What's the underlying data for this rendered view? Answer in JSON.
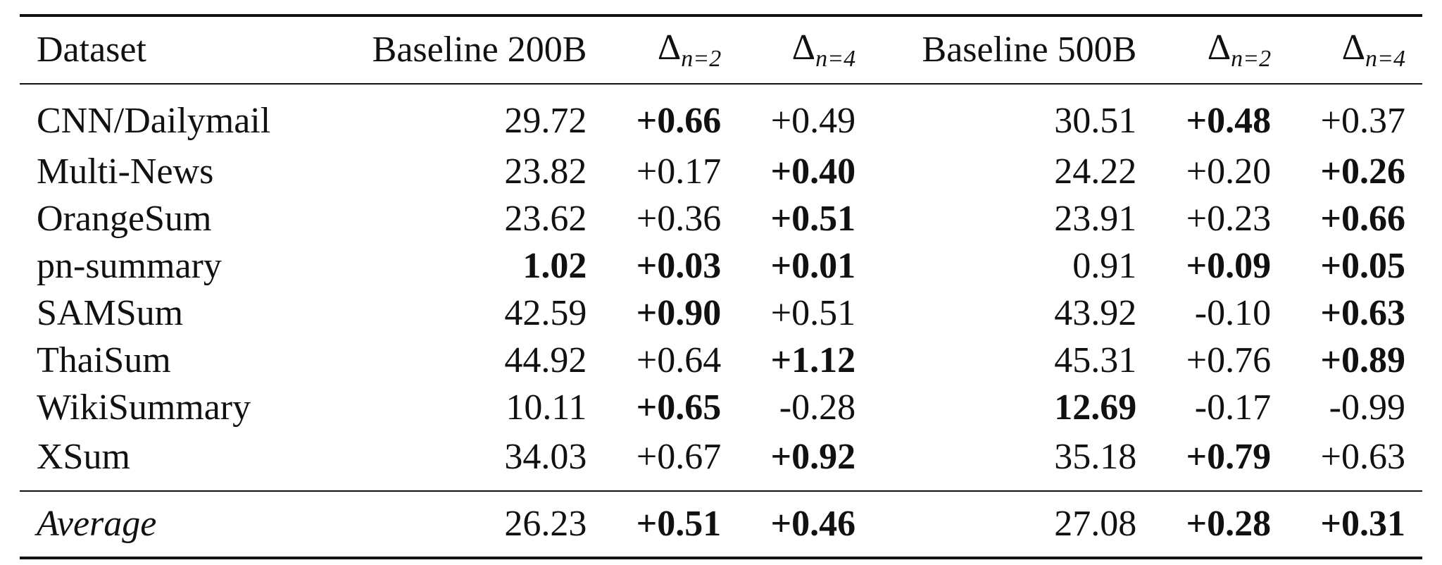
{
  "table": {
    "headers": {
      "dataset": "Dataset",
      "baseline_200b": "Baseline 200B",
      "delta_n2_a": "n=2",
      "delta_n4_a": "n=4",
      "baseline_500b": "Baseline 500B",
      "delta_n2_b": "n=2",
      "delta_n4_b": "n=4"
    },
    "delta_symbol": "Δ",
    "rows": [
      {
        "dataset": "CNN/Dailymail",
        "b200": "29.72",
        "d2a": "+0.66",
        "d4a": "+0.49",
        "b500": "30.51",
        "d2b": "+0.48",
        "d4b": "+0.37",
        "bold": {
          "b200": false,
          "d2a": true,
          "d4a": false,
          "b500": false,
          "d2b": true,
          "d4b": false
        }
      },
      {
        "dataset": "Multi-News",
        "b200": "23.82",
        "d2a": "+0.17",
        "d4a": "+0.40",
        "b500": "24.22",
        "d2b": "+0.20",
        "d4b": "+0.26",
        "bold": {
          "b200": false,
          "d2a": false,
          "d4a": true,
          "b500": false,
          "d2b": false,
          "d4b": true
        }
      },
      {
        "dataset": "OrangeSum",
        "b200": "23.62",
        "d2a": "+0.36",
        "d4a": "+0.51",
        "b500": "23.91",
        "d2b": "+0.23",
        "d4b": "+0.66",
        "bold": {
          "b200": false,
          "d2a": false,
          "d4a": true,
          "b500": false,
          "d2b": false,
          "d4b": true
        }
      },
      {
        "dataset": "pn-summary",
        "b200": "1.02",
        "d2a": "+0.03",
        "d4a": "+0.01",
        "b500": "0.91",
        "d2b": "+0.09",
        "d4b": "+0.05",
        "bold": {
          "b200": true,
          "d2a": true,
          "d4a": true,
          "b500": false,
          "d2b": true,
          "d4b": true
        }
      },
      {
        "dataset": "SAMSum",
        "b200": "42.59",
        "d2a": "+0.90",
        "d4a": "+0.51",
        "b500": "43.92",
        "d2b": "-0.10",
        "d4b": "+0.63",
        "bold": {
          "b200": false,
          "d2a": true,
          "d4a": false,
          "b500": false,
          "d2b": false,
          "d4b": true
        }
      },
      {
        "dataset": "ThaiSum",
        "b200": "44.92",
        "d2a": "+0.64",
        "d4a": "+1.12",
        "b500": "45.31",
        "d2b": "+0.76",
        "d4b": "+0.89",
        "bold": {
          "b200": false,
          "d2a": false,
          "d4a": true,
          "b500": false,
          "d2b": false,
          "d4b": true
        }
      },
      {
        "dataset": "WikiSummary",
        "b200": "10.11",
        "d2a": "+0.65",
        "d4a": "-0.28",
        "b500": "12.69",
        "d2b": "-0.17",
        "d4b": "-0.99",
        "bold": {
          "b200": false,
          "d2a": true,
          "d4a": false,
          "b500": true,
          "d2b": false,
          "d4b": false
        }
      },
      {
        "dataset": "XSum",
        "b200": "34.03",
        "d2a": "+0.67",
        "d4a": "+0.92",
        "b500": "35.18",
        "d2b": "+0.79",
        "d4b": "+0.63",
        "bold": {
          "b200": false,
          "d2a": false,
          "d4a": true,
          "b500": false,
          "d2b": true,
          "d4b": false
        }
      }
    ],
    "average": {
      "dataset": "Average",
      "b200": "26.23",
      "d2a": "+0.51",
      "d4a": "+0.46",
      "b500": "27.08",
      "d2b": "+0.28",
      "d4b": "+0.31",
      "bold": {
        "b200": false,
        "d2a": true,
        "d4a": true,
        "b500": false,
        "d2b": true,
        "d4b": true
      }
    }
  }
}
